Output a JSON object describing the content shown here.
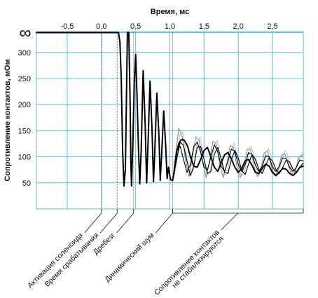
{
  "chart_data": {
    "type": "line",
    "xlabel": "Время, мс",
    "ylabel": "Сопротивление контактов, мОм",
    "xlim": [
      -0.95,
      2.95
    ],
    "ylim": [
      0,
      340
    ],
    "x_ticks": [
      -0.5,
      0.0,
      0.5,
      1.0,
      1.5,
      2.0,
      2.5
    ],
    "x_tick_labels": [
      "-0,5",
      "0,0",
      "0,5",
      "1,0",
      "1,5",
      "2,0",
      "2,5"
    ],
    "y_ticks": [
      50,
      100,
      150,
      200,
      250,
      300
    ],
    "y_tick_labels": [
      "50",
      "100",
      "150",
      "200",
      "250",
      "300"
    ],
    "infinity_label": "∞",
    "infinity_level": 338,
    "grid": true,
    "grid_color": "#5bbde0",
    "series": [
      {
        "line_color": "#000000",
        "x": [
          -0.95,
          0.25,
          0.27,
          0.29,
          0.31,
          0.33,
          0.35,
          0.38,
          0.4,
          0.42,
          0.43,
          0.44,
          0.46,
          0.48,
          0.5,
          0.52,
          0.54,
          0.56,
          0.58,
          0.61,
          0.64,
          0.66,
          0.68,
          0.71,
          0.74,
          0.76,
          0.78,
          0.81,
          0.84,
          0.86,
          0.88,
          0.91,
          0.94,
          0.96,
          0.98,
          1.01,
          1.04,
          1.06,
          1.08,
          1.1,
          1.13,
          1.16,
          1.19,
          1.22,
          1.26,
          1.3,
          1.35,
          1.4,
          1.45,
          1.5,
          1.55,
          1.6,
          1.65,
          1.7,
          1.75,
          1.8,
          1.85,
          1.9,
          1.95,
          2.0,
          2.05,
          2.1,
          2.15,
          2.2,
          2.25,
          2.3,
          2.35,
          2.4,
          2.45,
          2.5,
          2.55,
          2.6,
          2.65,
          2.7,
          2.75,
          2.8,
          2.85,
          2.9,
          2.95
        ],
        "y": [
          338,
          338,
          320,
          250,
          110,
          44,
          75,
          338,
          338,
          200,
          90,
          44,
          130,
          240,
          296,
          220,
          120,
          48,
          110,
          265,
          160,
          50,
          120,
          245,
          150,
          52,
          110,
          222,
          140,
          55,
          105,
          188,
          120,
          58,
          80,
          56,
          55,
          68,
          90,
          110,
          125,
          132,
          133,
          130,
          120,
          100,
          82,
          80,
          95,
          112,
          118,
          100,
          80,
          72,
          88,
          104,
          108,
          96,
          80,
          70,
          78,
          92,
          95,
          84,
          70,
          68,
          78,
          86,
          82,
          70,
          64,
          70,
          78,
          76,
          68,
          64,
          70,
          80,
          82
        ]
      },
      {
        "line_color": "#000000",
        "x": [
          1.04,
          1.1,
          1.15,
          1.2,
          1.25,
          1.3,
          1.35,
          1.4,
          1.45,
          1.5,
          1.55,
          1.6,
          1.65,
          1.7,
          1.75,
          1.8,
          1.85,
          1.9,
          1.95,
          2.0,
          2.05,
          2.1,
          2.15,
          2.2,
          2.25,
          2.3,
          2.35,
          2.4,
          2.45,
          2.5,
          2.55,
          2.6,
          2.65,
          2.7,
          2.75,
          2.8,
          2.85,
          2.9,
          2.95
        ],
        "y": [
          55,
          110,
          120,
          95,
          70,
          85,
          120,
          128,
          108,
          80,
          75,
          100,
          123,
          110,
          82,
          72,
          92,
          115,
          110,
          85,
          72,
          85,
          108,
          105,
          84,
          72,
          82,
          102,
          100,
          80,
          72,
          82,
          98,
          96,
          80,
          72,
          80,
          94,
          92
        ]
      },
      {
        "line_color": "#000000",
        "x": [
          1.04,
          1.1,
          1.15,
          1.2,
          1.25,
          1.3,
          1.35,
          1.4,
          1.45,
          1.5,
          1.55,
          1.6,
          1.65,
          1.7,
          1.75,
          1.8,
          1.85,
          1.9,
          1.95,
          2.0,
          2.05,
          2.1,
          2.15,
          2.2,
          2.25,
          2.3,
          2.35,
          2.4,
          2.45,
          2.5,
          2.55,
          2.6,
          2.65,
          2.7,
          2.75,
          2.8,
          2.85,
          2.9,
          2.95
        ],
        "y": [
          55,
          95,
          128,
          122,
          92,
          64,
          82,
          118,
          120,
          95,
          68,
          72,
          105,
          118,
          96,
          70,
          68,
          95,
          112,
          98,
          74,
          66,
          86,
          104,
          96,
          76,
          68,
          84,
          98,
          92,
          76,
          68,
          80,
          94,
          90,
          76,
          70,
          80,
          88
        ]
      },
      {
        "line_color": "#8e8e8e",
        "x": [
          1.04,
          1.08,
          1.13,
          1.18,
          1.23,
          1.28,
          1.33,
          1.38,
          1.43,
          1.48,
          1.53,
          1.58,
          1.63,
          1.68,
          1.73,
          1.78,
          1.83,
          1.88,
          1.93,
          1.98,
          2.03,
          2.08,
          2.13,
          2.18,
          2.23,
          2.28,
          2.33,
          2.38,
          2.43,
          2.48,
          2.53,
          2.58,
          2.63,
          2.68,
          2.73,
          2.78,
          2.83,
          2.88,
          2.95
        ],
        "y": [
          55,
          100,
          155,
          140,
          92,
          62,
          98,
          138,
          130,
          88,
          60,
          92,
          130,
          124,
          84,
          60,
          85,
          122,
          118,
          82,
          60,
          78,
          115,
          114,
          82,
          62,
          75,
          108,
          110,
          82,
          64,
          74,
          102,
          106,
          84,
          66,
          72,
          98,
          104
        ]
      },
      {
        "line_color": "#c0c0c0",
        "x": [
          1.04,
          1.09,
          1.14,
          1.19,
          1.24,
          1.29,
          1.34,
          1.39,
          1.44,
          1.49,
          1.54,
          1.59,
          1.64,
          1.69,
          1.74,
          1.79,
          1.84,
          1.89,
          1.94,
          1.99,
          2.04,
          2.09,
          2.14,
          2.19,
          2.24,
          2.29,
          2.34,
          2.39,
          2.44,
          2.49,
          2.54,
          2.59,
          2.64,
          2.69,
          2.74,
          2.79,
          2.84,
          2.89,
          2.95
        ],
        "y": [
          55,
          80,
          140,
          150,
          108,
          66,
          72,
          122,
          138,
          104,
          64,
          70,
          118,
          132,
          100,
          64,
          68,
          112,
          126,
          98,
          64,
          68,
          108,
          120,
          96,
          64,
          68,
          104,
          116,
          94,
          66,
          70,
          100,
          112,
          94,
          68,
          72,
          98,
          110
        ]
      }
    ],
    "markers": [
      {
        "x": 0.0,
        "label": "Активация соленоида"
      },
      {
        "x": 0.23,
        "label": "Время срабатывания"
      },
      {
        "x": 0.47,
        "label": "Дребезг"
      },
      {
        "x": 1.04,
        "label": "Динамический шум"
      }
    ],
    "final_annotation": {
      "x_start": 1.04,
      "x_end": 2.95,
      "line1": "Сопротивление контактов",
      "line2": "не стабилизируются"
    }
  }
}
